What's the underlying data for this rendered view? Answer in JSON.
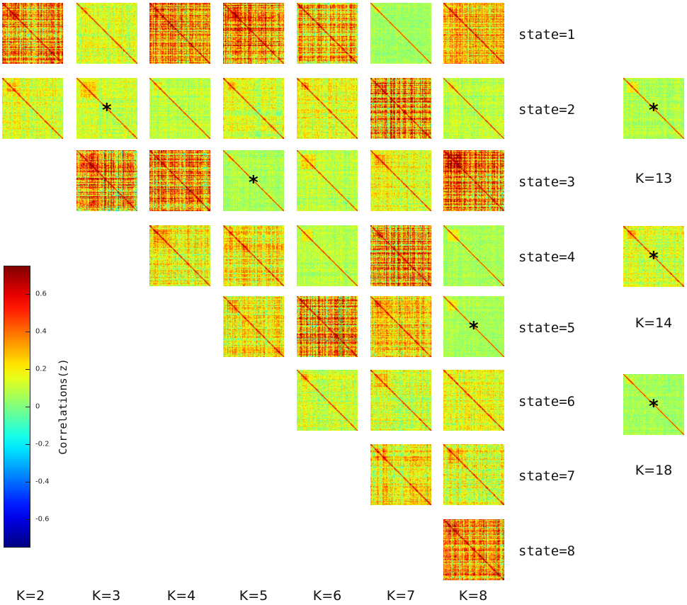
{
  "chart_data": {
    "type": "heatmap",
    "description_title": "",
    "k_labels": [
      "K=2",
      "K=3",
      "K=4",
      "K=5",
      "K=6",
      "K=7",
      "K=8"
    ],
    "extra_k_labels": [
      "K=13",
      "K=14",
      "K=18"
    ],
    "state_labels": [
      "state=1",
      "state=2",
      "state=3",
      "state=4",
      "state=5",
      "state=6",
      "state=7",
      "state=8"
    ],
    "colorbar": {
      "label": "Correlations(z)",
      "range": [
        -0.75,
        0.75
      ],
      "ticks": [
        "0.6",
        "0.4",
        "0.2",
        "0",
        "-0.2",
        "-0.4",
        "-0.6"
      ],
      "tick_values": [
        0.6,
        0.4,
        0.2,
        0,
        -0.2,
        -0.4,
        -0.6
      ]
    },
    "matrices": [
      {
        "k": 2,
        "state": 1,
        "intensity": 0.8,
        "marked": false
      },
      {
        "k": 2,
        "state": 2,
        "intensity": 0.3,
        "marked": false
      },
      {
        "k": 3,
        "state": 1,
        "intensity": 0.3,
        "marked": false
      },
      {
        "k": 3,
        "state": 2,
        "intensity": 0.25,
        "marked": true
      },
      {
        "k": 3,
        "state": 3,
        "intensity": 0.9,
        "marked": false
      },
      {
        "k": 4,
        "state": 1,
        "intensity": 0.75,
        "marked": false
      },
      {
        "k": 4,
        "state": 2,
        "intensity": 0.2,
        "marked": false
      },
      {
        "k": 4,
        "state": 3,
        "intensity": 0.85,
        "marked": false
      },
      {
        "k": 4,
        "state": 4,
        "intensity": 0.45,
        "marked": false
      },
      {
        "k": 5,
        "state": 1,
        "intensity": 0.85,
        "marked": false
      },
      {
        "k": 5,
        "state": 2,
        "intensity": 0.3,
        "marked": false
      },
      {
        "k": 5,
        "state": 3,
        "intensity": 0.15,
        "marked": true
      },
      {
        "k": 5,
        "state": 4,
        "intensity": 0.5,
        "marked": false
      },
      {
        "k": 5,
        "state": 5,
        "intensity": 0.45,
        "marked": false
      },
      {
        "k": 6,
        "state": 1,
        "intensity": 0.7,
        "marked": false
      },
      {
        "k": 6,
        "state": 2,
        "intensity": 0.35,
        "marked": false
      },
      {
        "k": 6,
        "state": 3,
        "intensity": 0.2,
        "marked": false
      },
      {
        "k": 6,
        "state": 4,
        "intensity": 0.15,
        "marked": false
      },
      {
        "k": 6,
        "state": 5,
        "intensity": 0.9,
        "marked": false
      },
      {
        "k": 6,
        "state": 6,
        "intensity": 0.3,
        "marked": false
      },
      {
        "k": 7,
        "state": 1,
        "intensity": 0.1,
        "marked": false
      },
      {
        "k": 7,
        "state": 2,
        "intensity": 0.85,
        "marked": false
      },
      {
        "k": 7,
        "state": 3,
        "intensity": 0.35,
        "marked": false
      },
      {
        "k": 7,
        "state": 4,
        "intensity": 0.85,
        "marked": false
      },
      {
        "k": 7,
        "state": 5,
        "intensity": 0.55,
        "marked": false
      },
      {
        "k": 7,
        "state": 6,
        "intensity": 0.35,
        "marked": false
      },
      {
        "k": 7,
        "state": 7,
        "intensity": 0.5,
        "marked": false
      },
      {
        "k": 8,
        "state": 1,
        "intensity": 0.6,
        "marked": false
      },
      {
        "k": 8,
        "state": 2,
        "intensity": 0.2,
        "marked": false
      },
      {
        "k": 8,
        "state": 3,
        "intensity": 0.9,
        "marked": false
      },
      {
        "k": 8,
        "state": 4,
        "intensity": 0.1,
        "marked": false
      },
      {
        "k": 8,
        "state": 5,
        "intensity": 0.1,
        "marked": true
      },
      {
        "k": 8,
        "state": 6,
        "intensity": 0.35,
        "marked": false
      },
      {
        "k": 8,
        "state": 7,
        "intensity": 0.45,
        "marked": false
      },
      {
        "k": 8,
        "state": 8,
        "intensity": 0.75,
        "marked": false
      },
      {
        "k": 13,
        "state": 0,
        "intensity": 0.15,
        "marked": true
      },
      {
        "k": 14,
        "state": 0,
        "intensity": 0.3,
        "marked": true
      },
      {
        "k": 18,
        "state": 0,
        "intensity": 0.1,
        "marked": true
      }
    ],
    "marker_symbol": "*"
  }
}
